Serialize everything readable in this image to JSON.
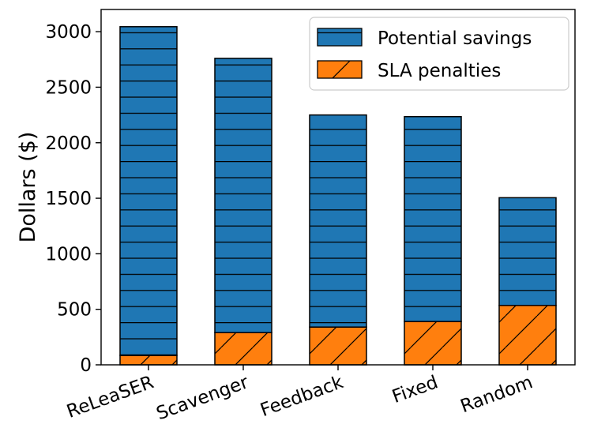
{
  "chart_data": {
    "type": "bar",
    "stacked": true,
    "title": "",
    "xlabel": "",
    "ylabel": "Dollars ($)",
    "ylim": [
      0,
      3200
    ],
    "yticks": [
      0,
      500,
      1000,
      1500,
      2000,
      2500,
      3000
    ],
    "categories": [
      "ReLeaSER",
      "Scavenger",
      "Feedback",
      "Fixed",
      "Random"
    ],
    "series": [
      {
        "name": "SLA penalties",
        "values": [
          85,
          290,
          340,
          390,
          535
        ],
        "color": "#ff7f0e",
        "hatch": "diagonal"
      },
      {
        "name": "Potential savings",
        "values": [
          2960,
          2470,
          1910,
          1845,
          970
        ],
        "color": "#1f77b4",
        "hatch": "horizontal"
      }
    ],
    "legend": {
      "position": "top-right",
      "entries": [
        "Potential savings",
        "SLA penalties"
      ]
    }
  }
}
